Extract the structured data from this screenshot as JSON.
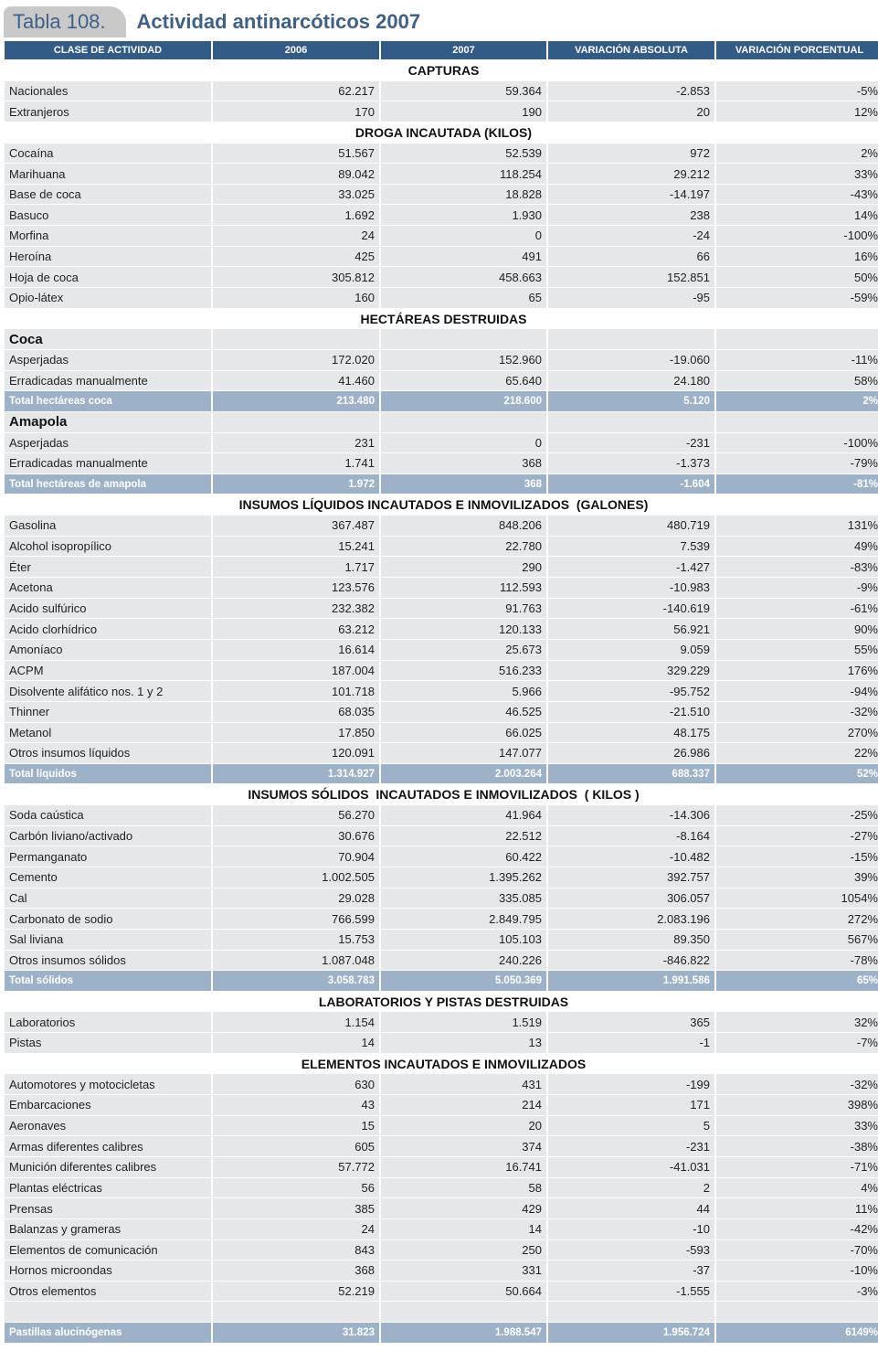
{
  "header": {
    "label": "Tabla 108.",
    "title": "Actividad antinarcóticos 2007"
  },
  "table": {
    "columns": [
      "CLASE DE ACTIVIDAD",
      "2006",
      "2007",
      "VARIACIÓN ABSOLUTA",
      "VARIACIÓN PORCENTUAL"
    ],
    "sections": [
      {
        "title": "CAPTURAS",
        "rows": [
          [
            "Nacionales",
            "62.217",
            "59.364",
            "-2.853",
            "-5%"
          ],
          [
            "Extranjeros",
            "170",
            "190",
            "20",
            "12%"
          ]
        ]
      },
      {
        "title": "DROGA INCAUTADA (KILOS)",
        "rows": [
          [
            "Cocaína",
            "51.567",
            "52.539",
            "972",
            "2%"
          ],
          [
            "Marihuana",
            "89.042",
            "118.254",
            "29.212",
            "33%"
          ],
          [
            "Base de coca",
            "33.025",
            "18.828",
            "-14.197",
            "-43%"
          ],
          [
            "Basuco",
            "1.692",
            "1.930",
            "238",
            "14%"
          ],
          [
            "Morfina",
            "24",
            "0",
            "-24",
            "-100%"
          ],
          [
            "Heroína",
            "425",
            "491",
            "66",
            "16%"
          ],
          [
            "Hoja de coca",
            "305.812",
            "458.663",
            "152.851",
            "50%"
          ],
          [
            "Opio-látex",
            "160",
            "65",
            "-95",
            "-59%"
          ]
        ]
      },
      {
        "title": "HECTÁREAS DESTRUIDAS",
        "groups": [
          {
            "title": "Coca",
            "rows": [
              [
                "Asperjadas",
                "172.020",
                "152.960",
                "-19.060",
                "-11%"
              ],
              [
                "Erradicadas manualmente",
                "41.460",
                "65.640",
                "24.180",
                "58%"
              ]
            ],
            "total": [
              "Total hectáreas coca",
              "213.480",
              "218.600",
              "5.120",
              "2%"
            ]
          },
          {
            "title": "Amapola",
            "rows": [
              [
                "Asperjadas",
                "231",
                "0",
                "-231",
                "-100%"
              ],
              [
                "Erradicadas manualmente",
                "1.741",
                "368",
                "-1.373",
                "-79%"
              ]
            ],
            "total": [
              "Total hectáreas de amapola",
              "1.972",
              "368",
              "-1.604",
              "-81%"
            ]
          }
        ]
      },
      {
        "title": "INSUMOS LÍQUIDOS INCAUTADOS E INMOVILIZADOS  (GALONES)",
        "rows": [
          [
            "Gasolina",
            "367.487",
            "848.206",
            "480.719",
            "131%"
          ],
          [
            "Alcohol isopropílico",
            "15.241",
            "22.780",
            "7.539",
            "49%"
          ],
          [
            "Éter",
            "1.717",
            "290",
            "-1.427",
            "-83%"
          ],
          [
            "Acetona",
            "123.576",
            "112.593",
            "-10.983",
            "-9%"
          ],
          [
            "Acido sulfúrico",
            "232.382",
            "91.763",
            "-140.619",
            "-61%"
          ],
          [
            "Acido clorhídrico",
            "63.212",
            "120.133",
            "56.921",
            "90%"
          ],
          [
            "Amoníaco",
            "16.614",
            "25.673",
            "9.059",
            "55%"
          ],
          [
            "ACPM",
            "187.004",
            "516.233",
            "329.229",
            "176%"
          ],
          [
            "Disolvente alifático nos. 1 y 2",
            "101.718",
            "5.966",
            "-95.752",
            "-94%"
          ],
          [
            "Thinner",
            "68.035",
            "46.525",
            "-21.510",
            "-32%"
          ],
          [
            "Metanol",
            "17.850",
            "66.025",
            "48.175",
            "270%"
          ],
          [
            "Otros insumos líquidos",
            "120.091",
            "147.077",
            "26.986",
            "22%"
          ]
        ],
        "total": [
          "Total líquidos",
          "1.314.927",
          "2.003.264",
          "688.337",
          "52%"
        ]
      },
      {
        "title": "INSUMOS SÓLIDOS  INCAUTADOS E INMOVILIZADOS  ( KILOS )",
        "rows": [
          [
            "Soda caústica",
            "56.270",
            "41.964",
            "-14.306",
            "-25%"
          ],
          [
            "Carbón liviano/activado",
            "30.676",
            "22.512",
            "-8.164",
            "-27%"
          ],
          [
            "Permanganato",
            "70.904",
            "60.422",
            "-10.482",
            "-15%"
          ],
          [
            "Cemento",
            "1.002.505",
            "1.395.262",
            "392.757",
            "39%"
          ],
          [
            "Cal",
            "29.028",
            "335.085",
            "306.057",
            "1054%"
          ],
          [
            "Carbonato de sodio",
            "766.599",
            "2.849.795",
            "2.083.196",
            "272%"
          ],
          [
            "Sal liviana",
            "15.753",
            "105.103",
            "89.350",
            "567%"
          ],
          [
            "Otros insumos sólidos",
            "1.087.048",
            "240.226",
            "-846.822",
            "-78%"
          ]
        ],
        "total": [
          "Total sólidos",
          "3.058.783",
          "5.050.369",
          "1.991.586",
          "65%"
        ]
      },
      {
        "title": "LABORATORIOS Y PISTAS DESTRUIDAS",
        "rows": [
          [
            "Laboratorios",
            "1.154",
            "1.519",
            "365",
            "32%"
          ],
          [
            "Pistas",
            "14",
            "13",
            "-1",
            "-7%"
          ]
        ]
      },
      {
        "title": "ELEMENTOS INCAUTADOS E INMOVILIZADOS",
        "rows": [
          [
            "Automotores y motocicletas",
            "630",
            "431",
            "-199",
            "-32%"
          ],
          [
            "Embarcaciones",
            "43",
            "214",
            "171",
            "398%"
          ],
          [
            "Aeronaves",
            "15",
            "20",
            "5",
            "33%"
          ],
          [
            "Armas diferentes calibres",
            "605",
            "374",
            "-231",
            "-38%"
          ],
          [
            "Munición diferentes calibres",
            "57.772",
            "16.741",
            "-41.031",
            "-71%"
          ],
          [
            "Plantas eléctricas",
            "56",
            "58",
            "2",
            "4%"
          ],
          [
            "Prensas",
            "385",
            "429",
            "44",
            "11%"
          ],
          [
            "Balanzas y grameras",
            "24",
            "14",
            "-10",
            "-42%"
          ],
          [
            "Elementos de comunicación",
            "843",
            "250",
            "-593",
            "-70%"
          ],
          [
            "Hornos microondas",
            "368",
            "331",
            "-37",
            "-10%"
          ],
          [
            "Otros elementos",
            "52.219",
            "50.664",
            "-1.555",
            "-3%"
          ]
        ]
      }
    ],
    "footer": [
      "Pastillas alucinógenas",
      "31.823",
      "1.988.547",
      "1.956.724",
      "6149%"
    ]
  }
}
